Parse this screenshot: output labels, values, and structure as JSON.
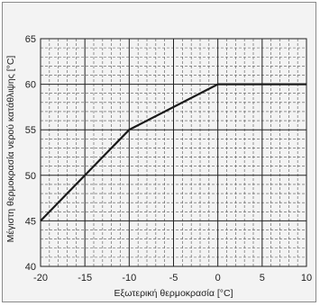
{
  "chart_data": {
    "type": "line",
    "title": "",
    "xlabel": "Εξωτερική θερμοκρασία [°C]",
    "ylabel": "Μέγιστη θερμοκρασία νερού κατάθλιψης [°C]",
    "xlim": [
      -20,
      10
    ],
    "ylim": [
      40,
      65
    ],
    "xticks": [
      -20,
      -15,
      -10,
      -5,
      0,
      5,
      10
    ],
    "yticks": [
      40,
      45,
      50,
      55,
      60,
      65
    ],
    "grid": {
      "major": "solid",
      "minor": "dashed"
    },
    "series": [
      {
        "x": [
          -20,
          -10,
          0,
          10
        ],
        "y": [
          45,
          55,
          60,
          60
        ],
        "color": "#1a1a1a"
      }
    ]
  }
}
